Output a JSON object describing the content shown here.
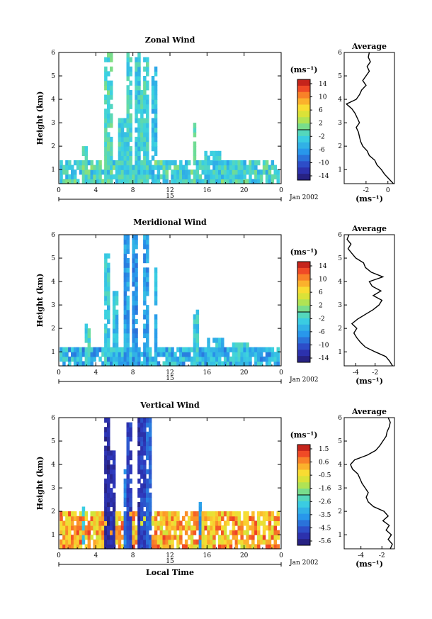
{
  "chart_data": [
    {
      "type": "heatmap",
      "title": "Zonal Wind",
      "xlabel": "",
      "ylabel": "Height (km)",
      "xlim": [
        0,
        24
      ],
      "ylim": [
        0.4,
        6
      ],
      "x_ticks": [
        "0",
        "4",
        "8",
        "12",
        "16",
        "20",
        "0"
      ],
      "y_ticks": [
        "1",
        "2",
        "3",
        "4",
        "5",
        "6"
      ],
      "date_label": "15",
      "month_label": "Jan 2002",
      "colorbar": {
        "unit": "(ms⁻¹)",
        "ticks": [
          "14",
          "10",
          "6",
          "2",
          "-2",
          "-6",
          "-10",
          "-14"
        ],
        "range": [
          -16,
          16
        ]
      },
      "profile": {
        "title": "Average",
        "xlabel": "(ms⁻¹)",
        "xlim": [
          -4,
          0.6
        ],
        "x_ticks": [
          "-2",
          "0"
        ],
        "points": [
          [
            0.4,
            0.5
          ],
          [
            0.6,
            0.1
          ],
          [
            0.8,
            -0.3
          ],
          [
            1.0,
            -0.6
          ],
          [
            1.2,
            -1.0
          ],
          [
            1.4,
            -1.2
          ],
          [
            1.6,
            -1.7
          ],
          [
            1.8,
            -1.9
          ],
          [
            2.0,
            -2.3
          ],
          [
            2.2,
            -2.5
          ],
          [
            2.4,
            -2.6
          ],
          [
            2.6,
            -2.7
          ],
          [
            2.8,
            -2.9
          ],
          [
            3.0,
            -2.6
          ],
          [
            3.2,
            -2.8
          ],
          [
            3.4,
            -3.0
          ],
          [
            3.6,
            -3.3
          ],
          [
            3.8,
            -3.8
          ],
          [
            4.0,
            -2.9
          ],
          [
            4.2,
            -2.6
          ],
          [
            4.4,
            -2.4
          ],
          [
            4.6,
            -2.0
          ],
          [
            4.8,
            -2.3
          ],
          [
            5.0,
            -2.0
          ],
          [
            5.2,
            -1.7
          ],
          [
            5.4,
            -1.9
          ],
          [
            5.6,
            -1.6
          ],
          [
            5.8,
            -1.8
          ],
          [
            6.0,
            -1.7
          ]
        ]
      }
    },
    {
      "type": "heatmap",
      "title": "Meridional Wind",
      "xlabel": "",
      "ylabel": "Height (km)",
      "xlim": [
        0,
        24
      ],
      "ylim": [
        0.4,
        6
      ],
      "x_ticks": [
        "0",
        "4",
        "8",
        "12",
        "16",
        "20",
        "0"
      ],
      "y_ticks": [
        "1",
        "2",
        "3",
        "4",
        "5",
        "6"
      ],
      "date_label": "15",
      "month_label": "Jan 2002",
      "colorbar": {
        "unit": "(ms⁻¹)",
        "ticks": [
          "14",
          "10",
          "6",
          "2",
          "-2",
          "-6",
          "-10",
          "-14"
        ],
        "range": [
          -16,
          16
        ]
      },
      "profile": {
        "title": "Average",
        "xlabel": "(ms⁻¹)",
        "xlim": [
          -5.2,
          0
        ],
        "x_ticks": [
          "-4",
          "-2"
        ],
        "points": [
          [
            0.4,
            -0.2
          ],
          [
            0.6,
            -0.5
          ],
          [
            0.8,
            -0.9
          ],
          [
            1.0,
            -2.0
          ],
          [
            1.2,
            -3.0
          ],
          [
            1.4,
            -3.5
          ],
          [
            1.6,
            -3.9
          ],
          [
            1.8,
            -4.2
          ],
          [
            2.0,
            -3.9
          ],
          [
            2.2,
            -4.4
          ],
          [
            2.4,
            -3.8
          ],
          [
            2.6,
            -3.0
          ],
          [
            2.8,
            -2.2
          ],
          [
            3.0,
            -1.6
          ],
          [
            3.2,
            -1.3
          ],
          [
            3.4,
            -2.2
          ],
          [
            3.6,
            -1.4
          ],
          [
            3.8,
            -2.3
          ],
          [
            4.0,
            -2.6
          ],
          [
            4.2,
            -1.2
          ],
          [
            4.4,
            -2.4
          ],
          [
            4.6,
            -3.0
          ],
          [
            4.8,
            -3.2
          ],
          [
            5.0,
            -4.0
          ],
          [
            5.2,
            -4.4
          ],
          [
            5.4,
            -4.8
          ],
          [
            5.6,
            -4.5
          ],
          [
            5.8,
            -4.9
          ],
          [
            6.0,
            -4.7
          ]
        ]
      }
    },
    {
      "type": "heatmap",
      "title": "Vertical Wind",
      "xlabel": "Local Time",
      "ylabel": "Height (km)",
      "xlim": [
        0,
        24
      ],
      "ylim": [
        0.4,
        6
      ],
      "x_ticks": [
        "0",
        "4",
        "8",
        "12",
        "16",
        "20",
        "0"
      ],
      "y_ticks": [
        "1",
        "2",
        "3",
        "4",
        "5",
        "6"
      ],
      "date_label": "15",
      "month_label": "Jan 2002",
      "colorbar": {
        "unit": "(ms⁻¹)",
        "ticks": [
          "1.5",
          "0.6",
          "-0.5",
          "-1.6",
          "-2.6",
          "-3.5",
          "-4.5",
          "-5.6"
        ],
        "range": [
          -6.1,
          2.0
        ]
      },
      "profile": {
        "title": "Average",
        "xlabel": "(ms⁻¹)",
        "xlim": [
          -5.6,
          -0.8
        ],
        "x_ticks": [
          "-4",
          "-2"
        ],
        "points": [
          [
            0.4,
            -1.2
          ],
          [
            0.6,
            -1.0
          ],
          [
            0.8,
            -1.4
          ],
          [
            1.0,
            -1.1
          ],
          [
            1.2,
            -1.6
          ],
          [
            1.4,
            -1.3
          ],
          [
            1.6,
            -1.9
          ],
          [
            1.8,
            -1.4
          ],
          [
            2.0,
            -1.8
          ],
          [
            2.2,
            -2.8
          ],
          [
            2.4,
            -3.3
          ],
          [
            2.6,
            -3.5
          ],
          [
            2.8,
            -3.3
          ],
          [
            3.0,
            -3.6
          ],
          [
            3.2,
            -3.9
          ],
          [
            3.4,
            -4.1
          ],
          [
            3.6,
            -4.3
          ],
          [
            3.8,
            -4.8
          ],
          [
            4.0,
            -5.0
          ],
          [
            4.2,
            -4.6
          ],
          [
            4.4,
            -3.4
          ],
          [
            4.6,
            -2.6
          ],
          [
            4.8,
            -2.2
          ],
          [
            5.0,
            -1.9
          ],
          [
            5.2,
            -1.6
          ],
          [
            5.4,
            -1.5
          ],
          [
            5.6,
            -1.3
          ],
          [
            5.8,
            -1.2
          ],
          [
            6.0,
            -1.4
          ]
        ]
      }
    }
  ]
}
